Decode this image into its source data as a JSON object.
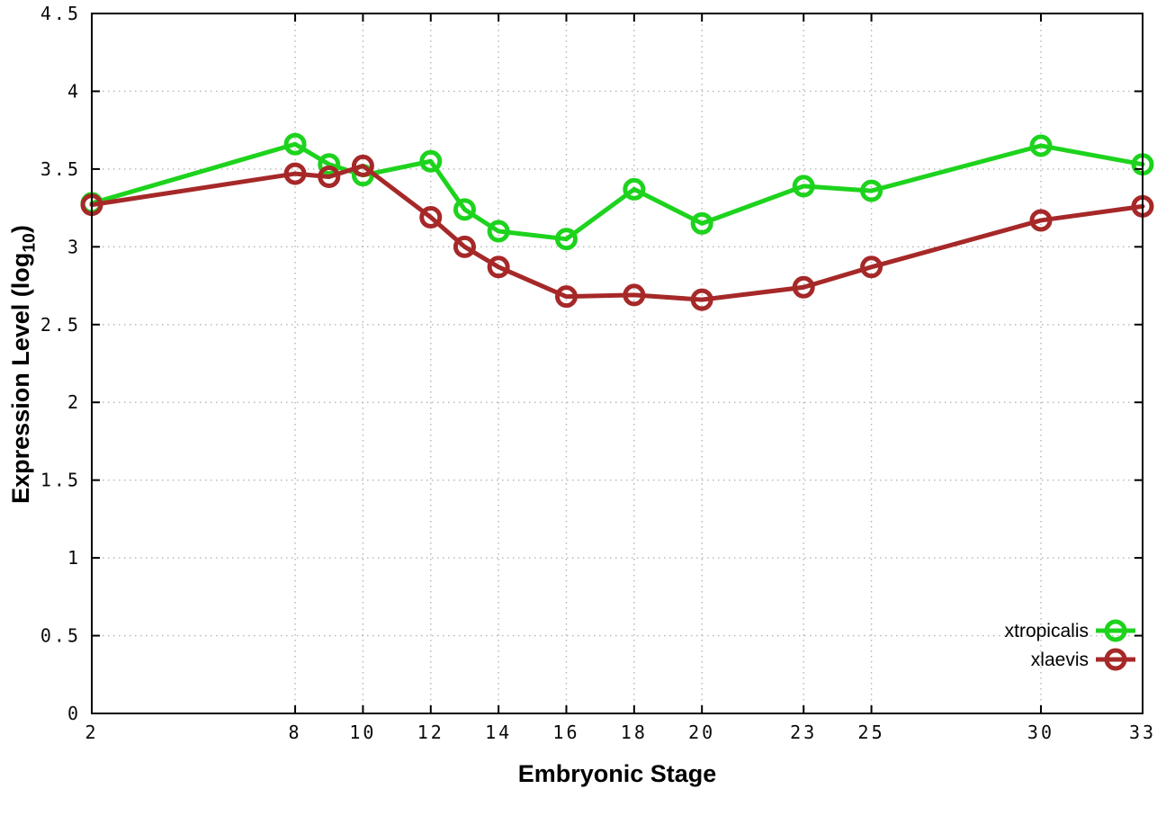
{
  "chart_data": {
    "type": "line",
    "title": "",
    "xlabel": "Embryonic Stage",
    "ylabel": "Expression Level (log10)",
    "ylabel_parts": {
      "main": "Expression Level (log",
      "sub": "10",
      "close": ")"
    },
    "x": [
      2,
      8,
      9,
      10,
      12,
      13,
      14,
      16,
      18,
      20,
      23,
      25,
      30,
      33
    ],
    "series": [
      {
        "name": "xtropicalis",
        "color": "#1dd31d",
        "values": [
          3.28,
          3.66,
          3.53,
          3.46,
          3.55,
          3.24,
          3.1,
          3.05,
          3.37,
          3.15,
          3.39,
          3.36,
          3.65,
          3.53
        ]
      },
      {
        "name": "xlaevis",
        "color": "#a62828",
        "values": [
          3.27,
          3.47,
          3.45,
          3.52,
          3.19,
          3.0,
          2.87,
          2.68,
          2.69,
          2.66,
          2.74,
          2.87,
          3.17,
          3.26
        ]
      }
    ],
    "xlim": [
      2,
      33
    ],
    "ylim": [
      0,
      4.5
    ],
    "xticks": [
      2,
      8,
      10,
      12,
      14,
      16,
      18,
      20,
      23,
      25,
      30,
      33
    ],
    "xtick_labels": [
      "2",
      "8",
      "10",
      "12",
      "14",
      "16",
      "18",
      "20",
      "23",
      "25",
      "30",
      "33"
    ],
    "yticks": [
      0,
      0.5,
      1,
      1.5,
      2,
      2.5,
      3,
      3.5,
      4,
      4.5
    ],
    "ytick_labels": [
      "0",
      "0.5",
      "1",
      "1.5",
      "2",
      "2.5",
      "3",
      "3.5",
      "4",
      "4.5"
    ],
    "grid": "dotted",
    "marker": "open-circle",
    "legend": {
      "position": "bottom-right",
      "entries": [
        "xtropicalis",
        "xlaevis"
      ]
    },
    "colors": {
      "xtropicalis": "#1dd31d",
      "xlaevis": "#a62828",
      "axis": "#000000",
      "grid": "#b4b4b4",
      "background": "#ffffff"
    }
  }
}
